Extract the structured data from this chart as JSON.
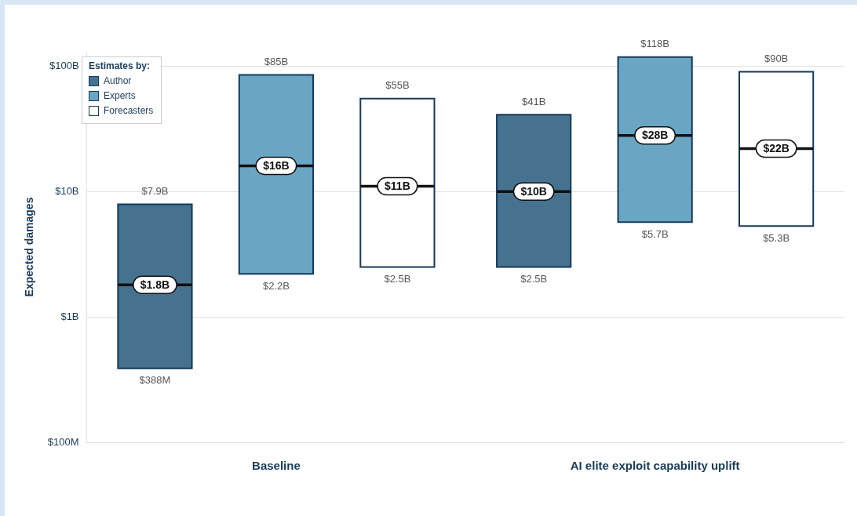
{
  "chart_data": {
    "type": "box",
    "ylabel": "Expected damages",
    "legend_title": "Estimates by:",
    "legend": "top left",
    "grid": "y",
    "log": true,
    "categories": [
      "Baseline",
      "AI elite exploit capability uplift"
    ],
    "ylim": [
      100000000,
      130000000000
    ],
    "yticks": [
      {
        "value": 100000000,
        "label": "$100M"
      },
      {
        "value": 1000000000,
        "label": "$1B"
      },
      {
        "value": 10000000000,
        "label": "$10B"
      },
      {
        "value": 100000000000,
        "label": "$100B"
      }
    ],
    "series": [
      {
        "name": "Author",
        "color": "#46728f",
        "boxes": [
          {
            "low": 388000000,
            "q1": 388000000,
            "median": 1800000000,
            "q3": 7900000000,
            "high": 7900000000
          },
          {
            "low": 2500000000,
            "q1": 2500000000,
            "median": 10000000000,
            "q3": 41000000000,
            "high": 41000000000
          }
        ]
      },
      {
        "name": "Experts",
        "color": "#6aa6c4",
        "boxes": [
          {
            "low": 2200000000,
            "q1": 2200000000,
            "median": 16000000000,
            "q3": 85000000000,
            "high": 85000000000
          },
          {
            "low": 5700000000,
            "q1": 5700000000,
            "median": 28000000000,
            "q3": 118000000000,
            "high": 118000000000
          }
        ]
      },
      {
        "name": "Forecasters",
        "color": "#ffffff",
        "boxes": [
          {
            "low": 2500000000,
            "q1": 2500000000,
            "median": 11000000000,
            "q3": 55000000000,
            "high": 55000000000
          },
          {
            "low": 5300000000,
            "q1": 5300000000,
            "median": 22000000000,
            "q3": 90000000000,
            "high": 90000000000
          }
        ]
      }
    ],
    "annotations": [
      "$388M",
      "$1.8B",
      "$7.9B",
      "$2.2B",
      "$16B",
      "$85B",
      "$2.5B",
      "$11B",
      "$55B",
      "$2.5B",
      "$10B",
      "$41B",
      "$5.7B",
      "$28B",
      "$118B",
      "$5.3B",
      "$22B",
      "$90B"
    ]
  }
}
